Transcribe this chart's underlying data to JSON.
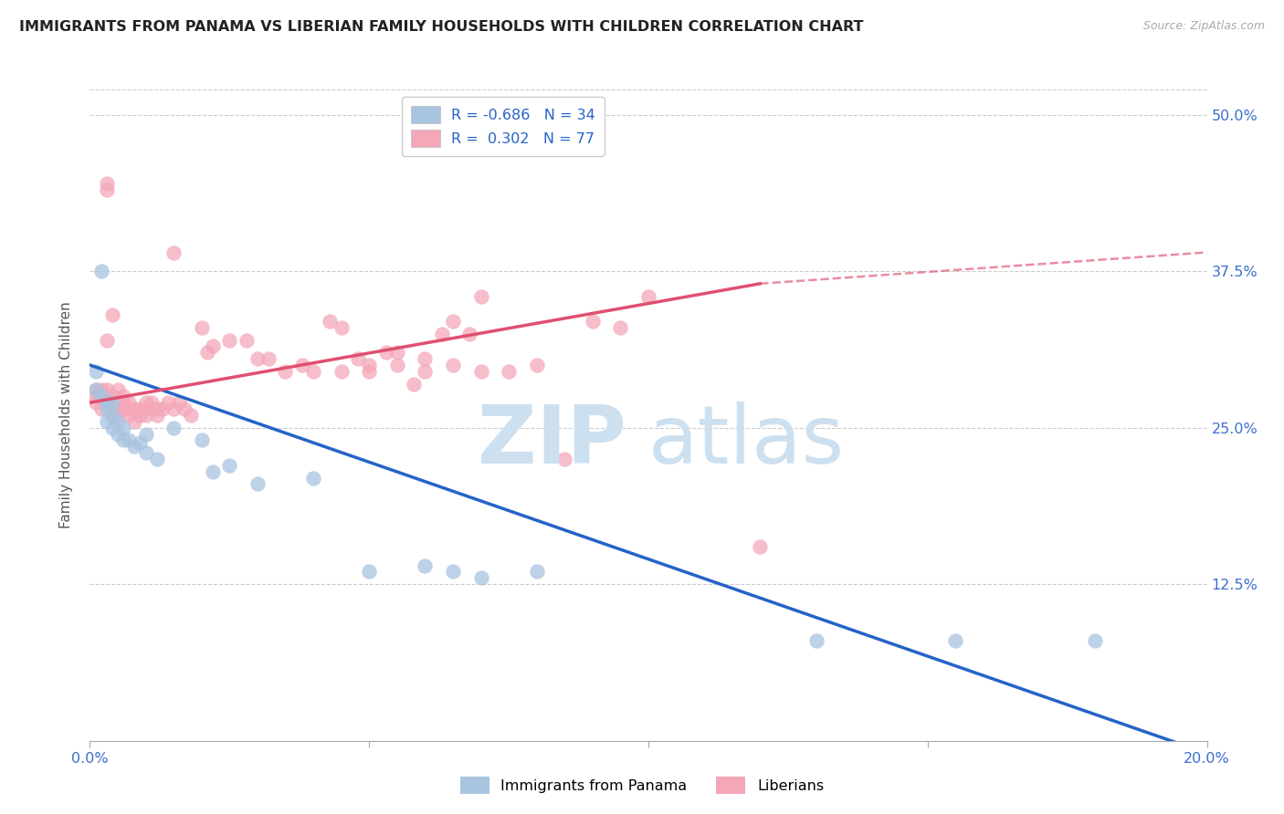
{
  "title": "IMMIGRANTS FROM PANAMA VS LIBERIAN FAMILY HOUSEHOLDS WITH CHILDREN CORRELATION CHART",
  "source": "Source: ZipAtlas.com",
  "ylabel": "Family Households with Children",
  "legend_label_blue": "Immigrants from Panama",
  "legend_label_pink": "Liberians",
  "xlim": [
    0.0,
    0.2
  ],
  "ylim": [
    0.0,
    0.52
  ],
  "blue_R": -0.686,
  "blue_N": 34,
  "pink_R": 0.302,
  "pink_N": 77,
  "blue_color": "#a8c4e0",
  "pink_color": "#f4a7b9",
  "blue_line_color": "#2563c7",
  "pink_line_color": "#e05070",
  "blue_line_x0": 0.0,
  "blue_line_y0": 0.3,
  "blue_line_x1": 0.2,
  "blue_line_y1": -0.01,
  "pink_line_x0": 0.0,
  "pink_line_y0": 0.27,
  "pink_line_x1_solid": 0.12,
  "pink_line_y1_solid": 0.365,
  "pink_line_x1_dash": 0.2,
  "pink_line_y1_dash": 0.39,
  "blue_x": [
    0.001,
    0.001,
    0.002,
    0.002,
    0.003,
    0.003,
    0.003,
    0.004,
    0.004,
    0.004,
    0.005,
    0.005,
    0.006,
    0.006,
    0.007,
    0.008,
    0.009,
    0.01,
    0.01,
    0.012,
    0.015,
    0.02,
    0.022,
    0.025,
    0.03,
    0.04,
    0.05,
    0.06,
    0.065,
    0.07,
    0.08,
    0.13,
    0.155,
    0.18
  ],
  "blue_y": [
    0.295,
    0.28,
    0.375,
    0.275,
    0.27,
    0.265,
    0.255,
    0.27,
    0.26,
    0.25,
    0.255,
    0.245,
    0.25,
    0.24,
    0.24,
    0.235,
    0.238,
    0.245,
    0.23,
    0.225,
    0.25,
    0.24,
    0.215,
    0.22,
    0.205,
    0.21,
    0.135,
    0.14,
    0.135,
    0.13,
    0.135,
    0.08,
    0.08,
    0.08
  ],
  "pink_x": [
    0.001,
    0.001,
    0.001,
    0.002,
    0.002,
    0.002,
    0.003,
    0.003,
    0.003,
    0.003,
    0.004,
    0.004,
    0.004,
    0.005,
    0.005,
    0.005,
    0.005,
    0.006,
    0.006,
    0.006,
    0.007,
    0.007,
    0.007,
    0.008,
    0.008,
    0.009,
    0.009,
    0.01,
    0.01,
    0.01,
    0.011,
    0.012,
    0.012,
    0.013,
    0.014,
    0.015,
    0.015,
    0.016,
    0.017,
    0.018,
    0.02,
    0.021,
    0.022,
    0.025,
    0.028,
    0.03,
    0.032,
    0.035,
    0.038,
    0.04,
    0.043,
    0.045,
    0.048,
    0.05,
    0.053,
    0.055,
    0.058,
    0.06,
    0.063,
    0.065,
    0.068,
    0.07,
    0.075,
    0.08,
    0.085,
    0.09,
    0.095,
    0.1,
    0.003,
    0.004,
    0.045,
    0.05,
    0.055,
    0.06,
    0.065,
    0.07,
    0.12
  ],
  "pink_y": [
    0.28,
    0.275,
    0.27,
    0.28,
    0.275,
    0.265,
    0.44,
    0.445,
    0.28,
    0.27,
    0.275,
    0.265,
    0.26,
    0.27,
    0.265,
    0.26,
    0.28,
    0.27,
    0.265,
    0.275,
    0.265,
    0.26,
    0.27,
    0.265,
    0.255,
    0.26,
    0.265,
    0.26,
    0.265,
    0.27,
    0.27,
    0.265,
    0.26,
    0.265,
    0.27,
    0.39,
    0.265,
    0.27,
    0.265,
    0.26,
    0.33,
    0.31,
    0.315,
    0.32,
    0.32,
    0.305,
    0.305,
    0.295,
    0.3,
    0.295,
    0.335,
    0.33,
    0.305,
    0.3,
    0.31,
    0.3,
    0.285,
    0.295,
    0.325,
    0.335,
    0.325,
    0.355,
    0.295,
    0.3,
    0.225,
    0.335,
    0.33,
    0.355,
    0.32,
    0.34,
    0.295,
    0.295,
    0.31,
    0.305,
    0.3,
    0.295,
    0.155
  ]
}
